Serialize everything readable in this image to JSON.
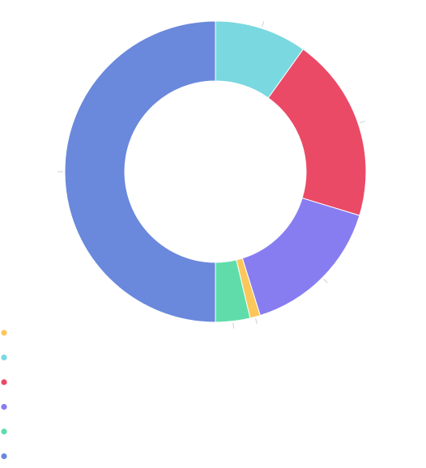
{
  "chart_data": {
    "type": "pie",
    "variant": "donut",
    "title": "",
    "legend_placement": "bottom-left",
    "slices": [
      {
        "name": "",
        "value": 1.1,
        "color": "#fbc75b"
      },
      {
        "name": "",
        "value": 9.9,
        "color": "#79d8e0"
      },
      {
        "name": "",
        "value": 19.8,
        "color": "#ea4a66"
      },
      {
        "name": "",
        "value": 15.5,
        "color": "#887df0"
      },
      {
        "name": "",
        "value": 3.7,
        "color": "#5fdcaa"
      },
      {
        "name": "",
        "value": 50.0,
        "color": "#6a88dc"
      }
    ],
    "legend_order": [
      0,
      1,
      2,
      3,
      4,
      5
    ]
  }
}
